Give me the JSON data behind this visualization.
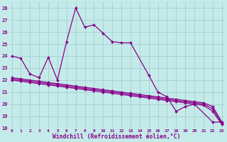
{
  "xlabel": "Windchill (Refroidissement éolien,°C)",
  "background_color": "#c5eaea",
  "grid_color": "#a0d0d0",
  "line_color": "#880088",
  "line1_x": [
    0,
    1,
    2,
    3,
    4,
    5,
    6,
    7,
    8,
    9,
    10,
    11,
    12,
    13,
    15,
    16,
    17,
    18,
    19,
    20,
    22,
    23
  ],
  "line1_y": [
    24.0,
    23.8,
    22.5,
    22.2,
    23.9,
    22.0,
    25.2,
    28.0,
    26.4,
    26.6,
    25.9,
    25.2,
    25.1,
    25.1,
    22.4,
    21.0,
    20.6,
    19.4,
    19.8,
    20.0,
    18.5,
    18.5
  ],
  "line2_x": [
    0,
    1,
    2,
    3,
    4,
    5,
    6,
    7,
    8,
    9,
    10,
    11,
    12,
    13,
    14,
    15,
    16,
    17,
    18,
    19,
    20,
    21,
    22,
    23
  ],
  "line2_y": [
    22.2,
    22.1,
    22.0,
    21.9,
    21.8,
    21.7,
    21.6,
    21.5,
    21.4,
    21.3,
    21.2,
    21.1,
    21.0,
    20.9,
    20.8,
    20.7,
    20.6,
    20.5,
    20.4,
    20.3,
    20.2,
    20.1,
    19.8,
    18.5
  ],
  "line3_x": [
    0,
    1,
    2,
    3,
    4,
    5,
    6,
    7,
    8,
    9,
    10,
    11,
    12,
    13,
    14,
    15,
    16,
    17,
    18,
    19,
    20,
    21,
    22,
    23
  ],
  "line3_y": [
    22.1,
    22.0,
    21.9,
    21.8,
    21.7,
    21.6,
    21.5,
    21.4,
    21.3,
    21.2,
    21.1,
    21.0,
    20.9,
    20.8,
    20.7,
    20.6,
    20.5,
    20.4,
    20.3,
    20.2,
    20.1,
    20.0,
    19.6,
    18.4
  ],
  "line4_x": [
    0,
    1,
    2,
    3,
    4,
    5,
    6,
    7,
    8,
    9,
    10,
    11,
    12,
    13,
    14,
    15,
    16,
    17,
    18,
    19,
    20,
    21,
    22,
    23
  ],
  "line4_y": [
    22.0,
    21.9,
    21.8,
    21.7,
    21.6,
    21.5,
    21.4,
    21.3,
    21.2,
    21.1,
    21.0,
    20.9,
    20.8,
    20.7,
    20.6,
    20.5,
    20.4,
    20.3,
    20.2,
    20.1,
    20.0,
    19.9,
    19.4,
    18.3
  ],
  "ylim": [
    18,
    28.5
  ],
  "xlim": [
    -0.3,
    23.3
  ],
  "yticks": [
    18,
    19,
    20,
    21,
    22,
    23,
    24,
    25,
    26,
    27,
    28
  ],
  "xticks": [
    0,
    1,
    2,
    3,
    4,
    5,
    6,
    7,
    8,
    9,
    10,
    11,
    12,
    13,
    14,
    15,
    16,
    17,
    18,
    19,
    20,
    21,
    22,
    23
  ],
  "markersize": 2.0,
  "linewidth": 0.9
}
